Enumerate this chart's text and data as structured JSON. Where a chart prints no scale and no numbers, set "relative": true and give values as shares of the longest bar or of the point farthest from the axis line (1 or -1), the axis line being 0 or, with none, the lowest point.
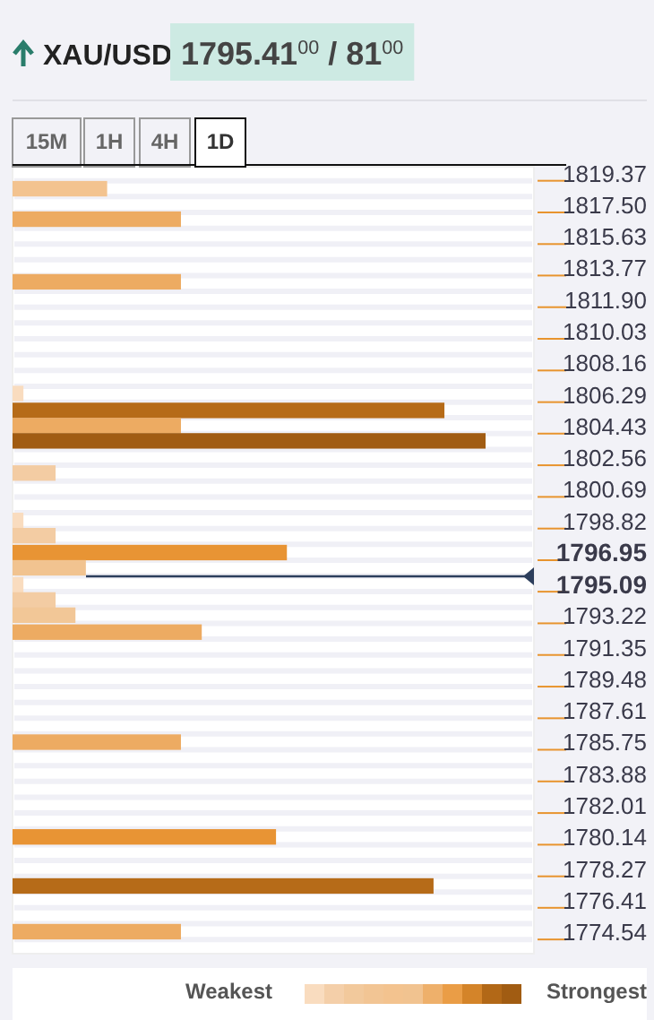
{
  "chart_data": {
    "type": "bar",
    "orientation": "horizontal",
    "relative": true,
    "title": "XAU/USD",
    "subtitle": "1795.41$^{00}$ / 81$^{00}$",
    "x": [
      1818.9,
      1817.1,
      1813.4,
      1806.8,
      1805.8,
      1804.9,
      1804.0,
      1802.1,
      1799.3,
      1798.4,
      1797.4,
      1796.5,
      1795.5,
      1794.6,
      1793.7,
      1792.7,
      1786.2,
      1780.6,
      1777.7,
      1775.0
    ],
    "values": [
      0.2,
      0.356,
      0.356,
      0.023,
      0.913,
      0.356,
      1,
      0.091,
      0.023,
      0.091,
      0.58,
      0.155,
      0.023,
      0.091,
      0.133,
      0.4,
      0.356,
      0.557,
      0.89,
      0.356
    ],
    "colors": [
      "#f3c38f",
      "#edab62",
      "#edab62",
      "#f9dcbf",
      "#b66b18",
      "#edab62",
      "#a15c12",
      "#f3cca3",
      "#f9dcbf",
      "#f3cca3",
      "#e89434",
      "#f1c390",
      "#f9dcbf",
      "#f3cca3",
      "#f2c797",
      "#edab62",
      "#edab62",
      "#e89434",
      "#b66b18",
      "#edab62"
    ],
    "ylim": [
      1773.7,
      1820.2
    ],
    "yticks": [
      1819.37,
      {
        "value": 1817.5,
        "label": "1817.50"
      },
      1815.63,
      1813.77,
      {
        "value": 1811.9,
        "label": "1811.90"
      },
      1810.03,
      1808.16,
      1806.29,
      1804.43,
      1802.56,
      1800.69,
      1798.82,
      1796.95,
      1795.09,
      1793.22,
      1791.35,
      1789.48,
      1787.61,
      1785.75,
      1783.88,
      1782.01,
      1780.14,
      1778.27,
      1776.41,
      1774.54
    ],
    "ref_lines": [
      {
        "axis": "y",
        "value": 1796.0,
        "color": "#2c3e5c"
      }
    ],
    "grid": true,
    "tick_labels": "y",
    "annotations": [
      "15M",
      "1H",
      "4H",
      "1D",
      "Weakest",
      "Strongest"
    ]
  }
}
